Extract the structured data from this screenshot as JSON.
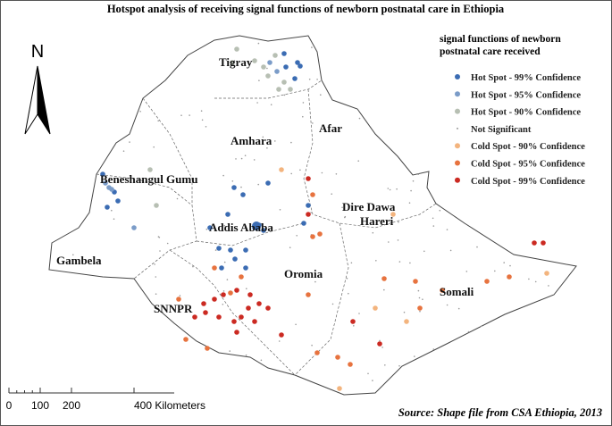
{
  "title": "Hotspot analysis of receiving signal functions of newborn postnatal care  in Ethiopia",
  "north": "N",
  "legend": {
    "title": [
      "signal functions of newborn",
      " postnatal care received"
    ],
    "items": [
      {
        "label": "Hot Spot - 99% Confidence",
        "color": "#3b6cb3"
      },
      {
        "label": "Hot Spot - 95% Confidence",
        "color": "#7b9cc8"
      },
      {
        "label": "Hot Spot - 90% Confidence",
        "color": "#b7bfb3"
      },
      {
        "label": "Not Significant",
        "color": "#9a9a9a"
      },
      {
        "label": "Cold Spot - 90% Confidence",
        "color": "#f3b47e"
      },
      {
        "label": "Cold Spot - 95% Confidence",
        "color": "#e7733f"
      },
      {
        "label": "Cold Spot - 99% Confidence",
        "color": "#cb2a22"
      }
    ]
  },
  "regions": [
    "Tigray",
    "Afar",
    "Amhara",
    "Beneshangul Gumu",
    "Addis Ababa",
    "Dire Dawa",
    "Hareri",
    "Gambela",
    "Oromia",
    "SNNPR",
    "Somali"
  ],
  "scale": [
    "0",
    "100",
    "200",
    "400 Kilometers"
  ],
  "source": "Source: Shape file from CSA Ethiopia, 2013"
}
